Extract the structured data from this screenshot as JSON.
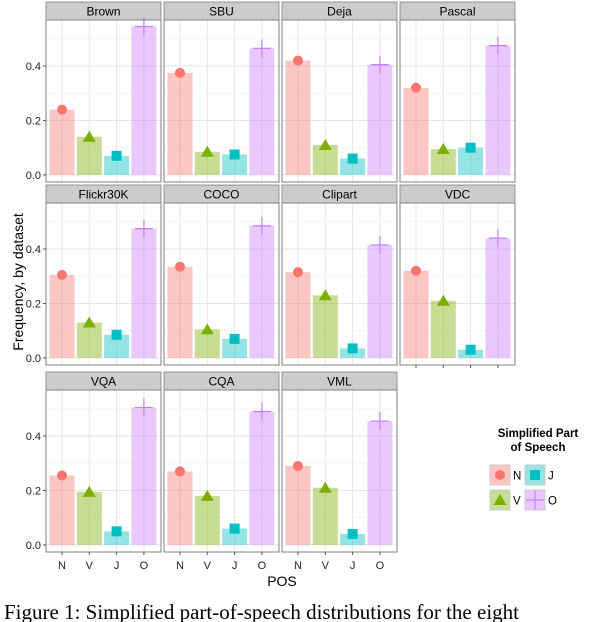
{
  "chart_data": {
    "type": "bar",
    "facet_by": "dataset",
    "categories": [
      "N",
      "V",
      "J",
      "O"
    ],
    "xlabel": "POS",
    "ylabel": "Frequency, by dataset",
    "ylim": [
      0,
      0.55
    ],
    "yticks": [
      "0.0",
      "0.2",
      "0.4"
    ],
    "ytick_values": [
      0,
      0.2,
      0.4
    ],
    "grid": true,
    "legend": {
      "title_lines": [
        "Simplified Part",
        "of Speech"
      ],
      "placement": "right",
      "entries": [
        "N",
        "J",
        "V",
        "O"
      ]
    },
    "colors": {
      "N": "#F8766D",
      "V": "#7CAE00",
      "J": "#00BFC4",
      "O": "#C77CFF"
    },
    "markers": {
      "N": "circle",
      "V": "triangle",
      "J": "square",
      "O": "plus"
    },
    "facets": [
      {
        "name": "Brown",
        "values": [
          0.24,
          0.14,
          0.07,
          0.545
        ]
      },
      {
        "name": "SBU",
        "values": [
          0.375,
          0.085,
          0.075,
          0.465
        ]
      },
      {
        "name": "Deja",
        "values": [
          0.42,
          0.11,
          0.06,
          0.405
        ]
      },
      {
        "name": "Pascal",
        "values": [
          0.32,
          0.095,
          0.1,
          0.475
        ]
      },
      {
        "name": "Flickr30K",
        "values": [
          0.305,
          0.13,
          0.085,
          0.475
        ]
      },
      {
        "name": "COCO",
        "values": [
          0.335,
          0.105,
          0.07,
          0.485
        ]
      },
      {
        "name": "Clipart",
        "values": [
          0.315,
          0.23,
          0.035,
          0.415
        ]
      },
      {
        "name": "VDC",
        "values": [
          0.32,
          0.21,
          0.03,
          0.44
        ]
      },
      {
        "name": "VQA",
        "values": [
          0.255,
          0.195,
          0.05,
          0.505
        ]
      },
      {
        "name": "CQA",
        "values": [
          0.27,
          0.18,
          0.06,
          0.49
        ]
      },
      {
        "name": "VML",
        "values": [
          0.29,
          0.21,
          0.04,
          0.455
        ]
      }
    ]
  },
  "caption": "Figure 1: Simplified part-of-speech distributions for the eight"
}
